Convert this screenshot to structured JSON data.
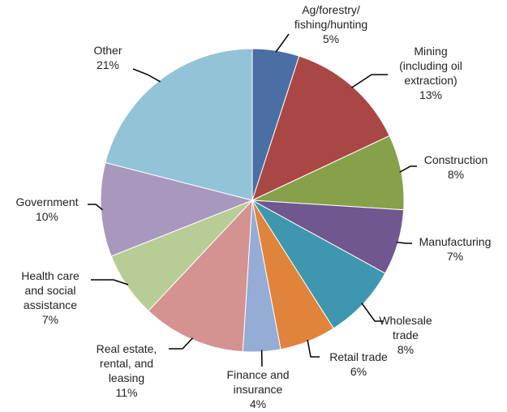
{
  "chart_data": {
    "type": "pie",
    "categories": [
      "Ag/forestry/\nfishing/hunting",
      "Mining\n(including oil\nextraction)",
      "Construction",
      "Manufacturing",
      "Wholesale\ntrade",
      "Retail trade",
      "Finance and\ninsurance",
      "Real estate,\nrental, and\nleasing",
      "Health care\nand social\nassistance",
      "Government",
      "Other"
    ],
    "values": [
      5,
      13,
      8,
      7,
      8,
      6,
      4,
      11,
      7,
      10,
      21
    ],
    "value_labels": [
      "5%",
      "13%",
      "8%",
      "7%",
      "8%",
      "6%",
      "4%",
      "11%",
      "7%",
      "10%",
      "21%"
    ],
    "colors": [
      "#4a6fa5",
      "#a94744",
      "#87a04a",
      "#70578f",
      "#3e97ae",
      "#e0843c",
      "#95acd4",
      "#d49290",
      "#b8cd95",
      "#a898bd",
      "#93c3d6"
    ]
  }
}
